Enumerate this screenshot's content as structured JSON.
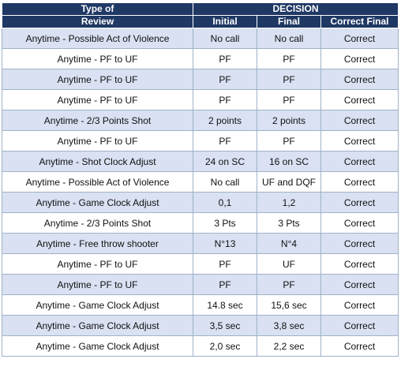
{
  "header": {
    "type_line1": "Type of",
    "type_line2": "Review",
    "decision": "DECISION",
    "initial": "Initial",
    "final": "Final",
    "correct_final": "Correct Final"
  },
  "rows": [
    {
      "type": "Anytime - Possible Act of Violence",
      "initial": "No call",
      "final": "No call",
      "correct": "Correct"
    },
    {
      "type": "Anytime - PF to UF",
      "initial": "PF",
      "final": "PF",
      "correct": "Correct"
    },
    {
      "type": "Anytime - PF to UF",
      "initial": "PF",
      "final": "PF",
      "correct": "Correct"
    },
    {
      "type": "Anytime - PF to UF",
      "initial": "PF",
      "final": "PF",
      "correct": "Correct"
    },
    {
      "type": "Anytime - 2/3 Points Shot",
      "initial": "2 points",
      "final": "2 points",
      "correct": "Correct"
    },
    {
      "type": "Anytime - PF to UF",
      "initial": "PF",
      "final": "PF",
      "correct": "Correct"
    },
    {
      "type": "Anytime - Shot Clock Adjust",
      "initial": "24 on SC",
      "final": "16 on SC",
      "correct": "Correct"
    },
    {
      "type": "Anytime - Possible Act of Violence",
      "initial": "No call",
      "final": "UF and DQF",
      "correct": "Correct"
    },
    {
      "type": "Anytime - Game Clock Adjust",
      "initial": "0,1",
      "final": "1,2",
      "correct": "Correct"
    },
    {
      "type": "Anytime - 2/3 Points Shot",
      "initial": "3 Pts",
      "final": "3 Pts",
      "correct": "Correct"
    },
    {
      "type": "Anytime - Free throw shooter",
      "initial": "N°13",
      "final": "N°4",
      "correct": "Correct"
    },
    {
      "type": "Anytime - PF to UF",
      "initial": "PF",
      "final": "UF",
      "correct": "Correct"
    },
    {
      "type": "Anytime - PF to UF",
      "initial": "PF",
      "final": "PF",
      "correct": "Correct"
    },
    {
      "type": "Anytime - Game Clock Adjust",
      "initial": "14.8 sec",
      "final": "15,6 sec",
      "correct": "Correct"
    },
    {
      "type": "Anytime - Game Clock Adjust",
      "initial": "3,5 sec",
      "final": "3,8 sec",
      "correct": "Correct"
    },
    {
      "type": "Anytime - Game Clock Adjust",
      "initial": "2,0 sec",
      "final": "2,2 sec",
      "correct": "Correct"
    }
  ]
}
